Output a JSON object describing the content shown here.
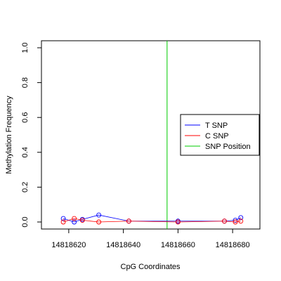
{
  "chart_data": {
    "type": "line",
    "title": "",
    "xlabel": "CpG Coordinates",
    "ylabel": "Methylation Frequency",
    "xlim": [
      14818610,
      14818690
    ],
    "ylim": [
      0,
      1.0
    ],
    "x_ticks": [
      14818620,
      14818640,
      14818660,
      14818680
    ],
    "y_ticks": [
      0.0,
      0.2,
      0.4,
      0.6,
      0.8,
      1.0
    ],
    "x_tick_labels": [
      "14818620",
      "14818640",
      "14818660",
      "14818680"
    ],
    "y_tick_labels": [
      "0.0",
      "0.2",
      "0.4",
      "0.6",
      "0.8",
      "1.0"
    ],
    "legend_position": "right",
    "series": [
      {
        "name": "T SNP",
        "color": "#0000ff",
        "x": [
          14818618,
          14818622,
          14818625,
          14818631,
          14818642,
          14818660,
          14818677,
          14818681,
          14818683
        ],
        "y": [
          0.02,
          0.0,
          0.015,
          0.04,
          0.005,
          0.005,
          0.005,
          0.01,
          0.025
        ]
      },
      {
        "name": "C SNP",
        "color": "#ff0000",
        "x": [
          14818618,
          14818622,
          14818625,
          14818631,
          14818642,
          14818660,
          14818677,
          14818681,
          14818683
        ],
        "y": [
          0.0,
          0.02,
          0.01,
          0.0,
          0.005,
          0.0,
          0.005,
          0.0,
          0.005
        ]
      }
    ],
    "snp_position": {
      "name": "SNP Position",
      "color": "#00cc00",
      "x": 14818656
    }
  }
}
